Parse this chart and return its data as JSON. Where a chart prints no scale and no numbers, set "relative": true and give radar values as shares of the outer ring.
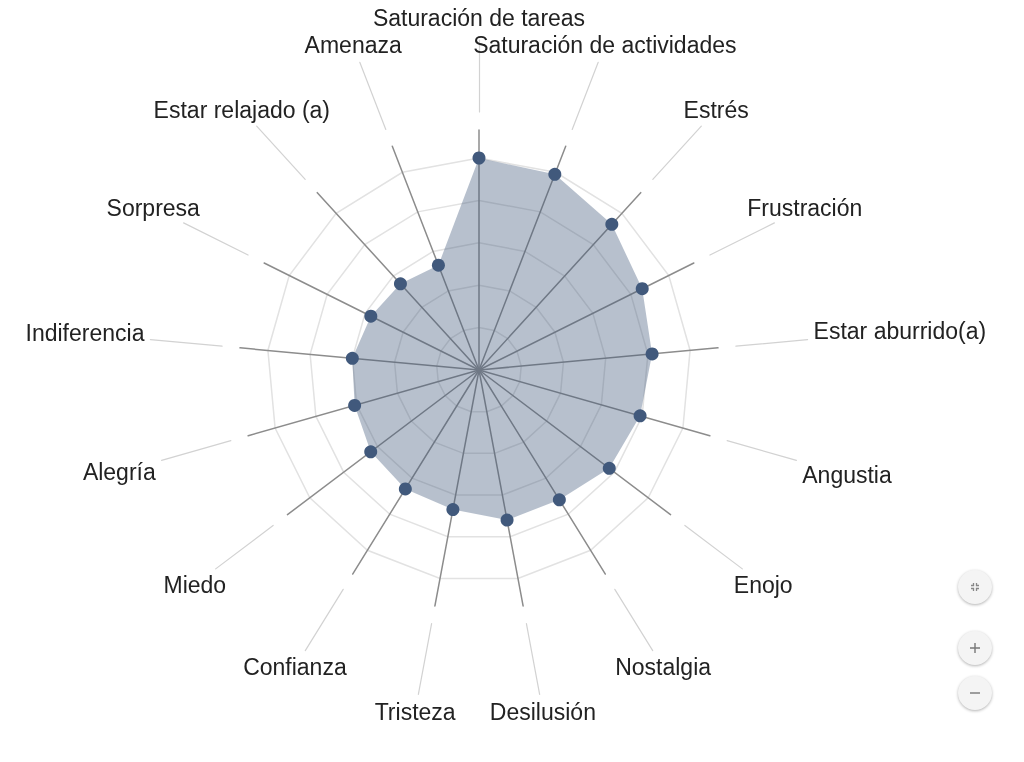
{
  "chart_data": {
    "type": "radar",
    "relative": true,
    "categories": [
      "Saturación de tareas",
      "Saturación de actividades",
      "Estrés",
      "Frustración",
      "Estar aburrido(a)",
      "Angustia",
      "Enojo",
      "Nostalgia",
      "Desilusión",
      "Tristeza",
      "Confianza",
      "Miedo",
      "Alegría",
      "Indiferencia",
      "Sorpresa",
      "Estar relajado (a)",
      "Amenaza"
    ],
    "series": [
      {
        "color": "#41597c",
        "values": [
          1.0,
          0.99,
          0.93,
          0.86,
          0.82,
          0.79,
          0.77,
          0.72,
          0.72,
          0.67,
          0.66,
          0.64,
          0.61,
          0.6,
          0.57,
          0.55,
          0.53
        ]
      }
    ],
    "marker": "circle",
    "grid": true
  }
}
